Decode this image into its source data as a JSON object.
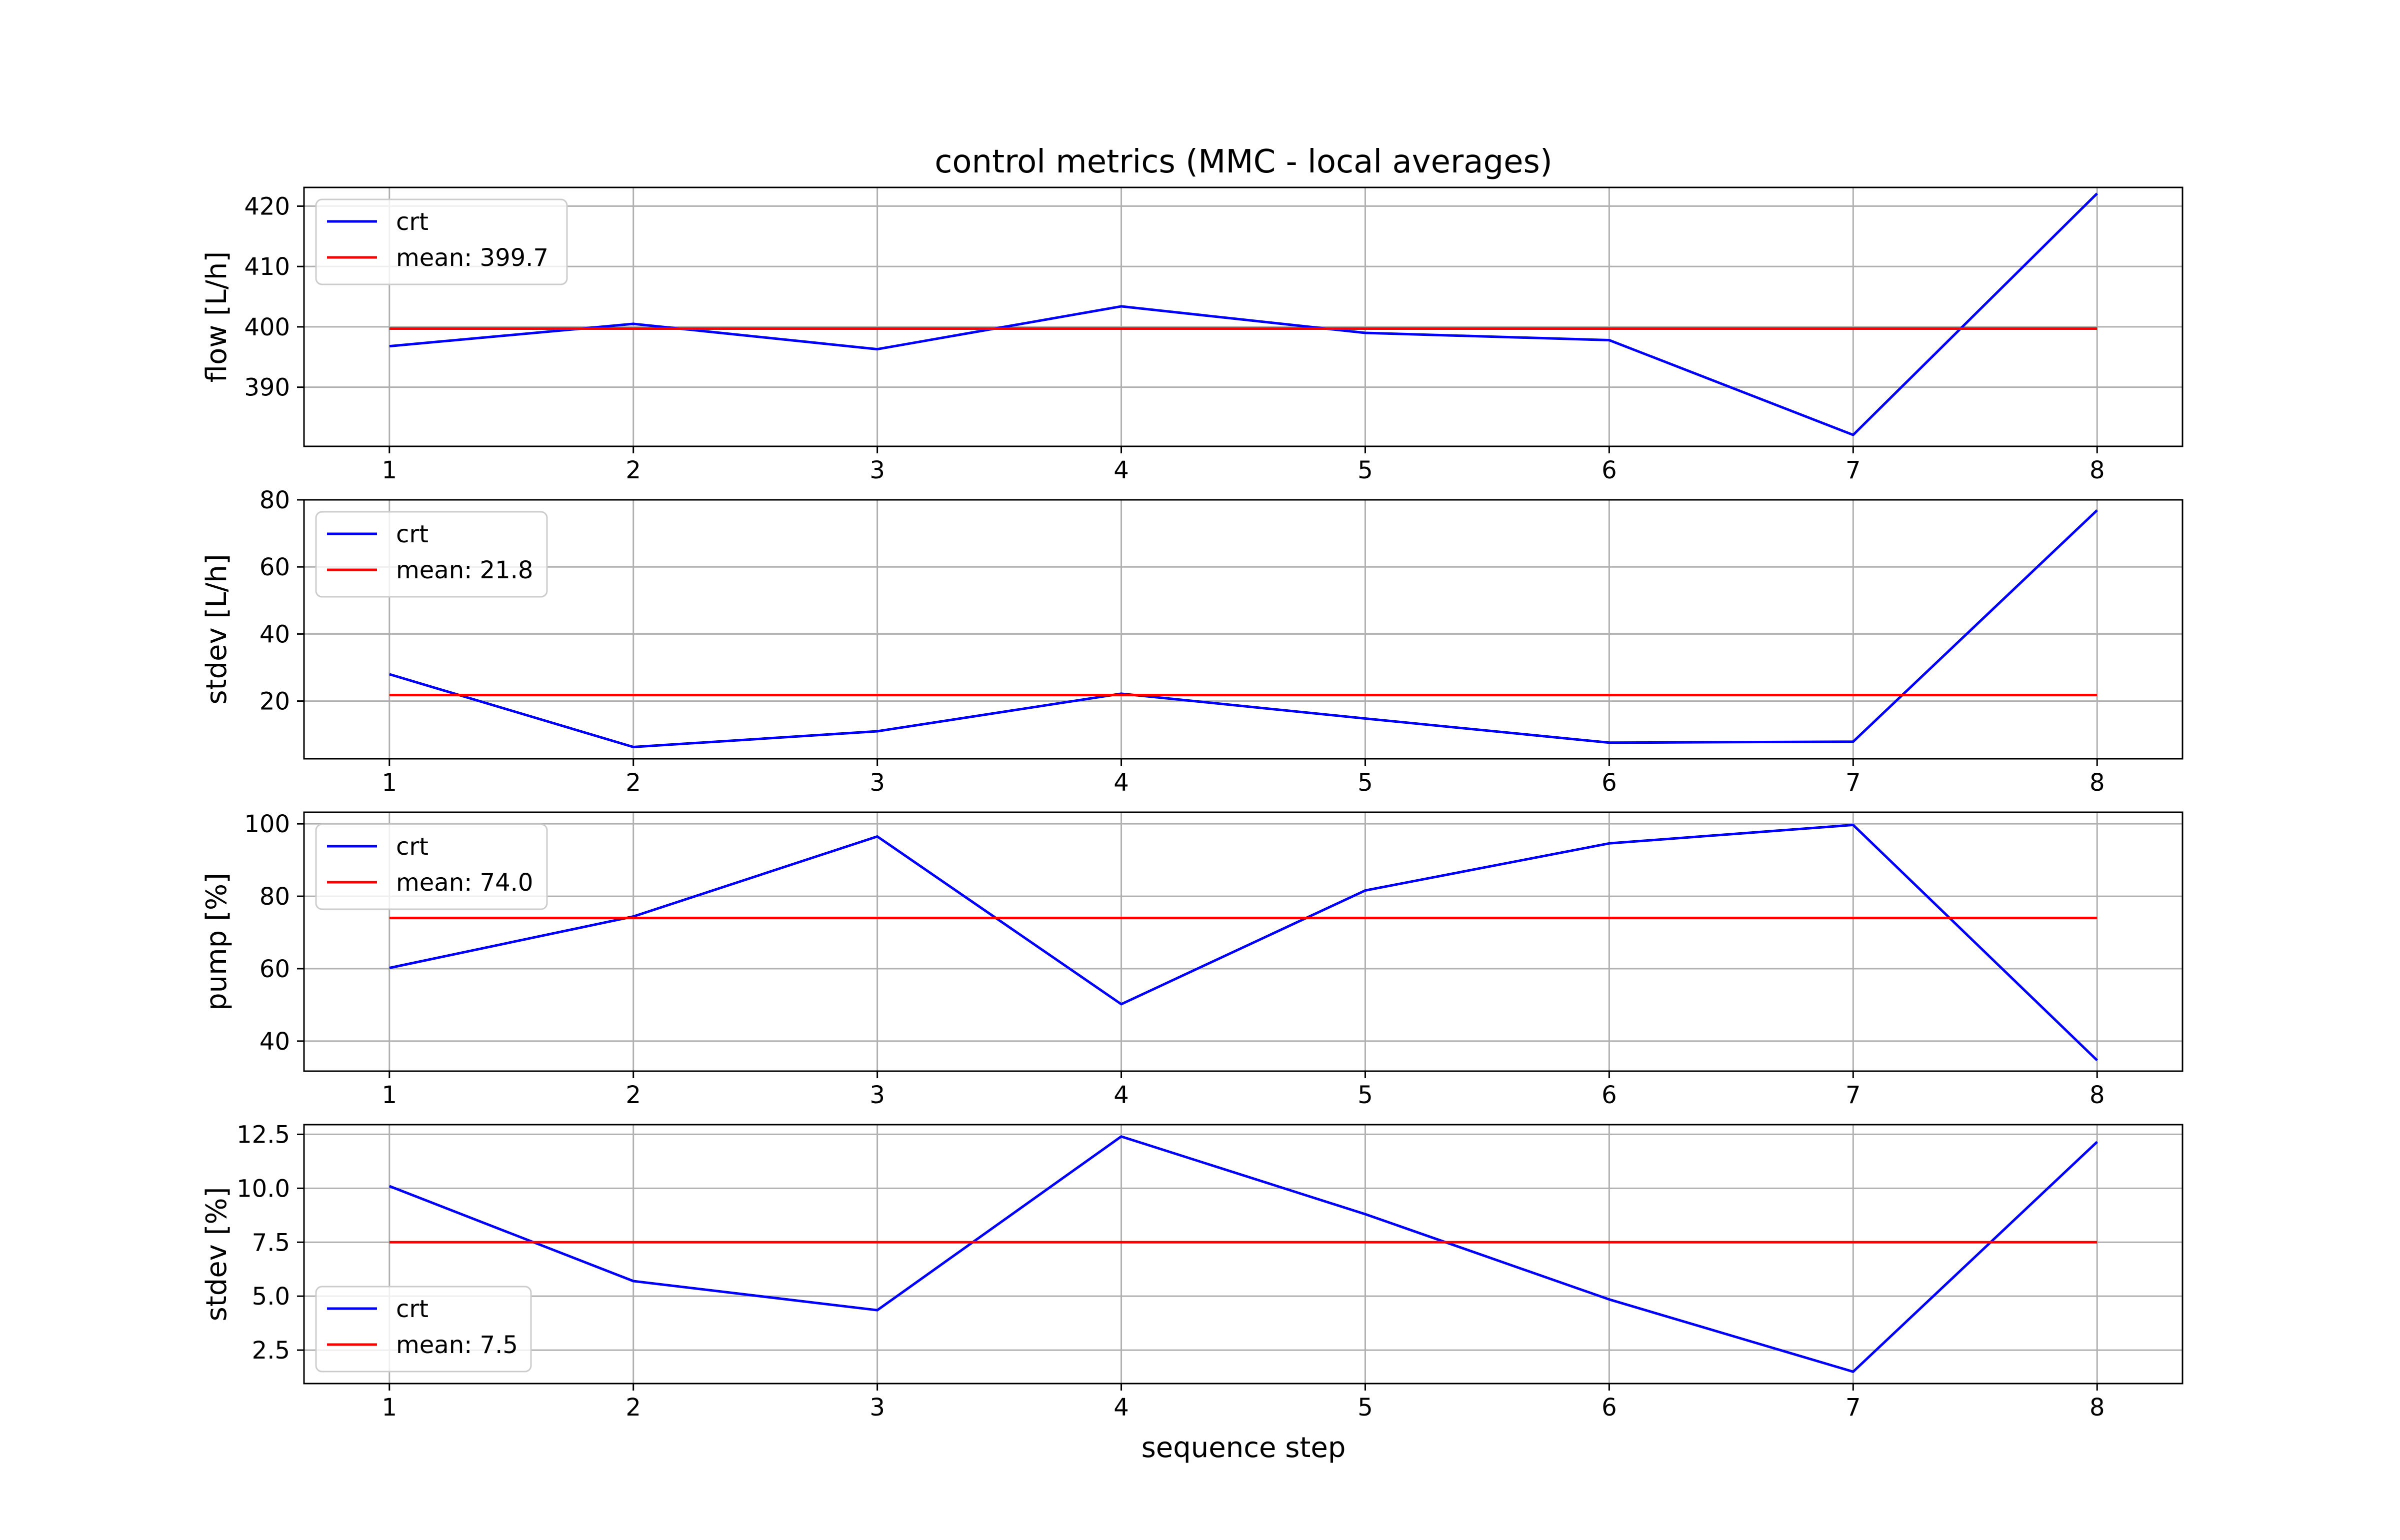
{
  "figure": {
    "title": "control metrics (MMC - local averages)",
    "xlabel": "sequence step"
  },
  "colors": {
    "series_crt": "#0000ff",
    "series_mean": "#ff0000",
    "grid": "#b0b0b0",
    "axes": "#000000"
  },
  "chart_data": [
    {
      "type": "line",
      "title": "control metrics (MMC - local averages)",
      "xlabel": "",
      "ylabel": "flow [L/h]",
      "x": [
        1,
        2,
        3,
        4,
        5,
        6,
        7,
        8
      ],
      "xticks": [
        "1",
        "2",
        "3",
        "4",
        "5",
        "6",
        "7",
        "8"
      ],
      "xlim": [
        0.65,
        8.35
      ],
      "ylim": [
        380.2,
        423.1
      ],
      "yticks": [
        "390",
        "400",
        "410",
        "420"
      ],
      "ytick_values": [
        390,
        400,
        410,
        420
      ],
      "grid": true,
      "legend_position": "upper left",
      "series": [
        {
          "name": "crt",
          "values": [
            396.8,
            400.5,
            396.3,
            403.4,
            399.0,
            397.8,
            382.1,
            422.1
          ]
        },
        {
          "name": "mean: 399.7",
          "values": [
            399.7,
            399.7,
            399.7,
            399.7,
            399.7,
            399.7,
            399.7,
            399.7
          ]
        }
      ]
    },
    {
      "type": "line",
      "xlabel": "",
      "ylabel": "stdev [L/h]",
      "x": [
        1,
        2,
        3,
        4,
        5,
        6,
        7,
        8
      ],
      "xticks": [
        "1",
        "2",
        "3",
        "4",
        "5",
        "6",
        "7",
        "8"
      ],
      "xlim": [
        0.65,
        8.35
      ],
      "ylim": [
        2.8,
        80.0
      ],
      "yticks": [
        "20",
        "40",
        "60",
        "80"
      ],
      "ytick_values": [
        20,
        40,
        60,
        80
      ],
      "grid": true,
      "legend_position": "upper left",
      "series": [
        {
          "name": "crt",
          "values": [
            28.0,
            6.3,
            11.0,
            22.2,
            14.8,
            7.6,
            7.9,
            76.9
          ]
        },
        {
          "name": "mean: 21.8",
          "values": [
            21.8,
            21.8,
            21.8,
            21.8,
            21.8,
            21.8,
            21.8,
            21.8
          ]
        }
      ]
    },
    {
      "type": "line",
      "xlabel": "",
      "ylabel": "pump [%]",
      "x": [
        1,
        2,
        3,
        4,
        5,
        6,
        7,
        8
      ],
      "xticks": [
        "1",
        "2",
        "3",
        "4",
        "5",
        "6",
        "7",
        "8"
      ],
      "xlim": [
        0.65,
        8.35
      ],
      "ylim": [
        31.7,
        103.2
      ],
      "yticks": [
        "40",
        "60",
        "80",
        "100"
      ],
      "ytick_values": [
        40,
        60,
        80,
        100
      ],
      "grid": true,
      "legend_position": "upper left",
      "series": [
        {
          "name": "crt",
          "values": [
            60.2,
            74.4,
            96.5,
            50.2,
            81.6,
            94.6,
            99.7,
            34.7
          ]
        },
        {
          "name": "mean: 74.0",
          "values": [
            74.0,
            74.0,
            74.0,
            74.0,
            74.0,
            74.0,
            74.0,
            74.0
          ]
        }
      ]
    },
    {
      "type": "line",
      "xlabel": "sequence step",
      "ylabel": "stdev [%]",
      "x": [
        1,
        2,
        3,
        4,
        5,
        6,
        7,
        8
      ],
      "xticks": [
        "1",
        "2",
        "3",
        "4",
        "5",
        "6",
        "7",
        "8"
      ],
      "xlim": [
        0.65,
        8.35
      ],
      "ylim": [
        0.95,
        12.95
      ],
      "yticks": [
        "2.5",
        "5.0",
        "7.5",
        "10.0",
        "12.5"
      ],
      "ytick_values": [
        2.5,
        5.0,
        7.5,
        10.0,
        12.5
      ],
      "grid": true,
      "legend_position": "lower left",
      "series": [
        {
          "name": "crt",
          "values": [
            10.1,
            5.7,
            4.35,
            12.4,
            8.8,
            4.85,
            1.5,
            12.15
          ]
        },
        {
          "name": "mean: 7.5",
          "values": [
            7.5,
            7.5,
            7.5,
            7.5,
            7.5,
            7.5,
            7.5,
            7.5
          ]
        }
      ]
    }
  ]
}
